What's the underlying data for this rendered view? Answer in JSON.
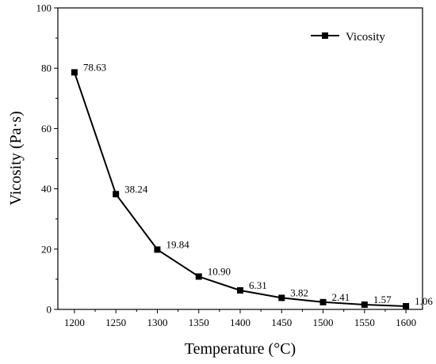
{
  "chart_data": {
    "type": "line",
    "xlabel": "Temperature (°C)",
    "ylabel": "Vicosity (Pa·s)",
    "xlim": [
      1180,
      1620
    ],
    "ylim": [
      0,
      100
    ],
    "x_ticks": [
      1200,
      1250,
      1300,
      1350,
      1400,
      1450,
      1500,
      1550,
      1600
    ],
    "y_ticks": [
      0,
      20,
      40,
      60,
      80,
      100
    ],
    "grid": false,
    "legend_position": "top-right",
    "series": [
      {
        "name": "Vicosity",
        "color": "#000000",
        "marker": "square",
        "x": [
          1200,
          1250,
          1300,
          1350,
          1400,
          1450,
          1500,
          1550,
          1600
        ],
        "y": [
          78.63,
          38.24,
          19.84,
          10.9,
          6.31,
          3.82,
          2.41,
          1.57,
          1.06
        ],
        "labels": [
          "78.63",
          "38.24",
          "19.84",
          "10.90",
          "6.31",
          "3.82",
          "2.41",
          "1.57",
          "1.06"
        ]
      }
    ]
  }
}
